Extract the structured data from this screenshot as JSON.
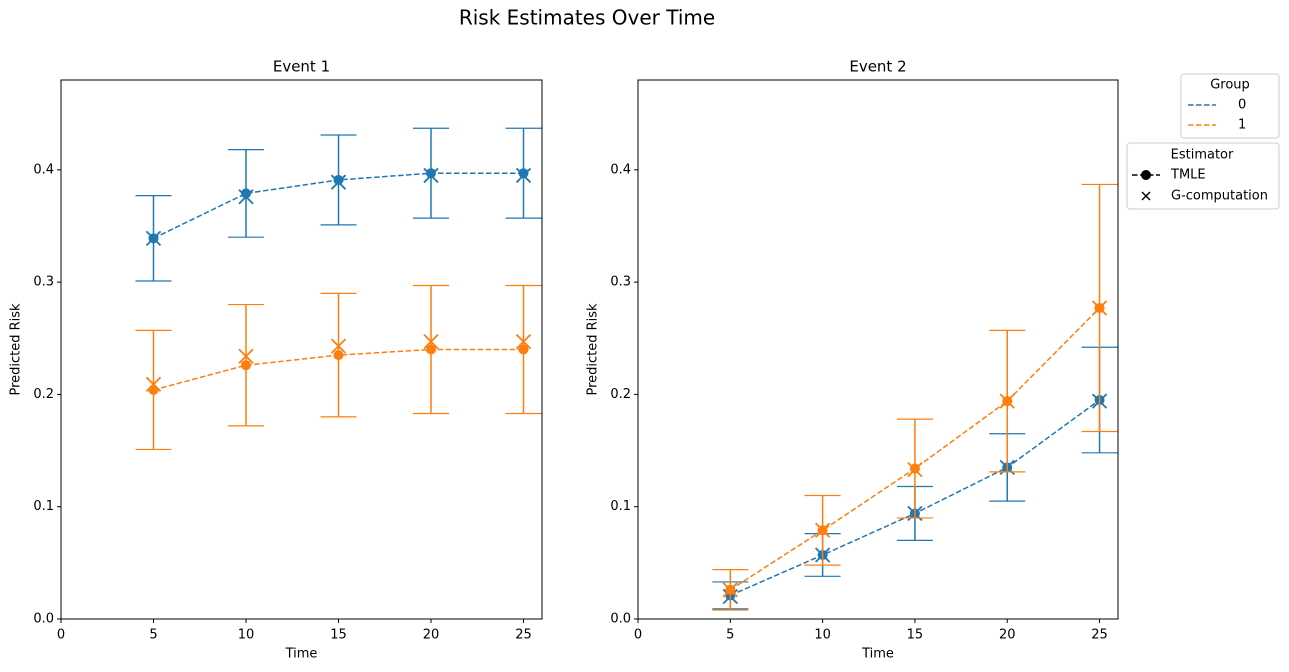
{
  "title": "Risk Estimates Over Time",
  "legends": {
    "group": {
      "title": "Group",
      "entries": [
        {
          "name": "0",
          "color": "#1f77b4"
        },
        {
          "name": "1",
          "color": "#ff7f0e"
        }
      ]
    },
    "estimator": {
      "title": "Estimator",
      "entries": [
        "TMLE",
        "G-computation"
      ]
    }
  },
  "chart_data": [
    {
      "type": "line",
      "title": "Event 1",
      "xlabel": "Time",
      "ylabel": "Predicted Risk",
      "x": [
        5,
        10,
        15,
        20,
        25
      ],
      "xlim": [
        0,
        26
      ],
      "ylim": [
        0,
        0.48
      ],
      "xticks": [
        0,
        5,
        10,
        15,
        20,
        25
      ],
      "yticks": [
        {
          "value": 0,
          "label": "0.0"
        },
        0.1,
        0.2,
        0.3,
        0.4
      ],
      "groups": [
        {
          "tmle": {
            "values": [
              0.339,
              0.379,
              0.391,
              0.397,
              0.397
            ],
            "errors": [
              0.038,
              0.039,
              0.04,
              0.04,
              0.04
            ]
          },
          "gcomp": {
            "values": [
              0.339,
              0.376,
              0.389,
              0.395,
              0.395
            ]
          }
        },
        {
          "tmle": {
            "values": [
              0.204,
              0.226,
              0.235,
              0.24,
              0.24
            ],
            "errors": [
              0.053,
              0.054,
              0.055,
              0.057,
              0.057
            ]
          },
          "gcomp": {
            "values": [
              0.209,
              0.234,
              0.243,
              0.247,
              0.247
            ]
          }
        }
      ]
    },
    {
      "type": "line",
      "title": "Event 2",
      "xlabel": "Time",
      "ylabel": "Predicted Risk",
      "x": [
        5,
        10,
        15,
        20,
        25
      ],
      "xlim": [
        0,
        26
      ],
      "ylim": [
        0,
        0.48
      ],
      "xticks": [
        0,
        5,
        10,
        15,
        20,
        25
      ],
      "yticks": [
        {
          "value": 0,
          "label": "0.0"
        },
        0.1,
        0.2,
        0.3,
        0.4
      ],
      "groups": [
        {
          "tmle": {
            "values": [
              0.021,
              0.057,
              0.094,
              0.135,
              0.195
            ],
            "errors": [
              0.012,
              0.019,
              0.024,
              0.03,
              0.047
            ]
          },
          "gcomp": {
            "values": [
              0.02,
              0.057,
              0.094,
              0.135,
              0.194
            ]
          }
        },
        {
          "tmle": {
            "values": [
              0.026,
              0.079,
              0.134,
              0.194,
              0.277
            ],
            "errors": [
              0.018,
              0.031,
              0.044,
              0.063,
              0.11
            ]
          },
          "gcomp": {
            "values": [
              0.026,
              0.079,
              0.133,
              0.194,
              0.277
            ]
          }
        }
      ]
    }
  ]
}
